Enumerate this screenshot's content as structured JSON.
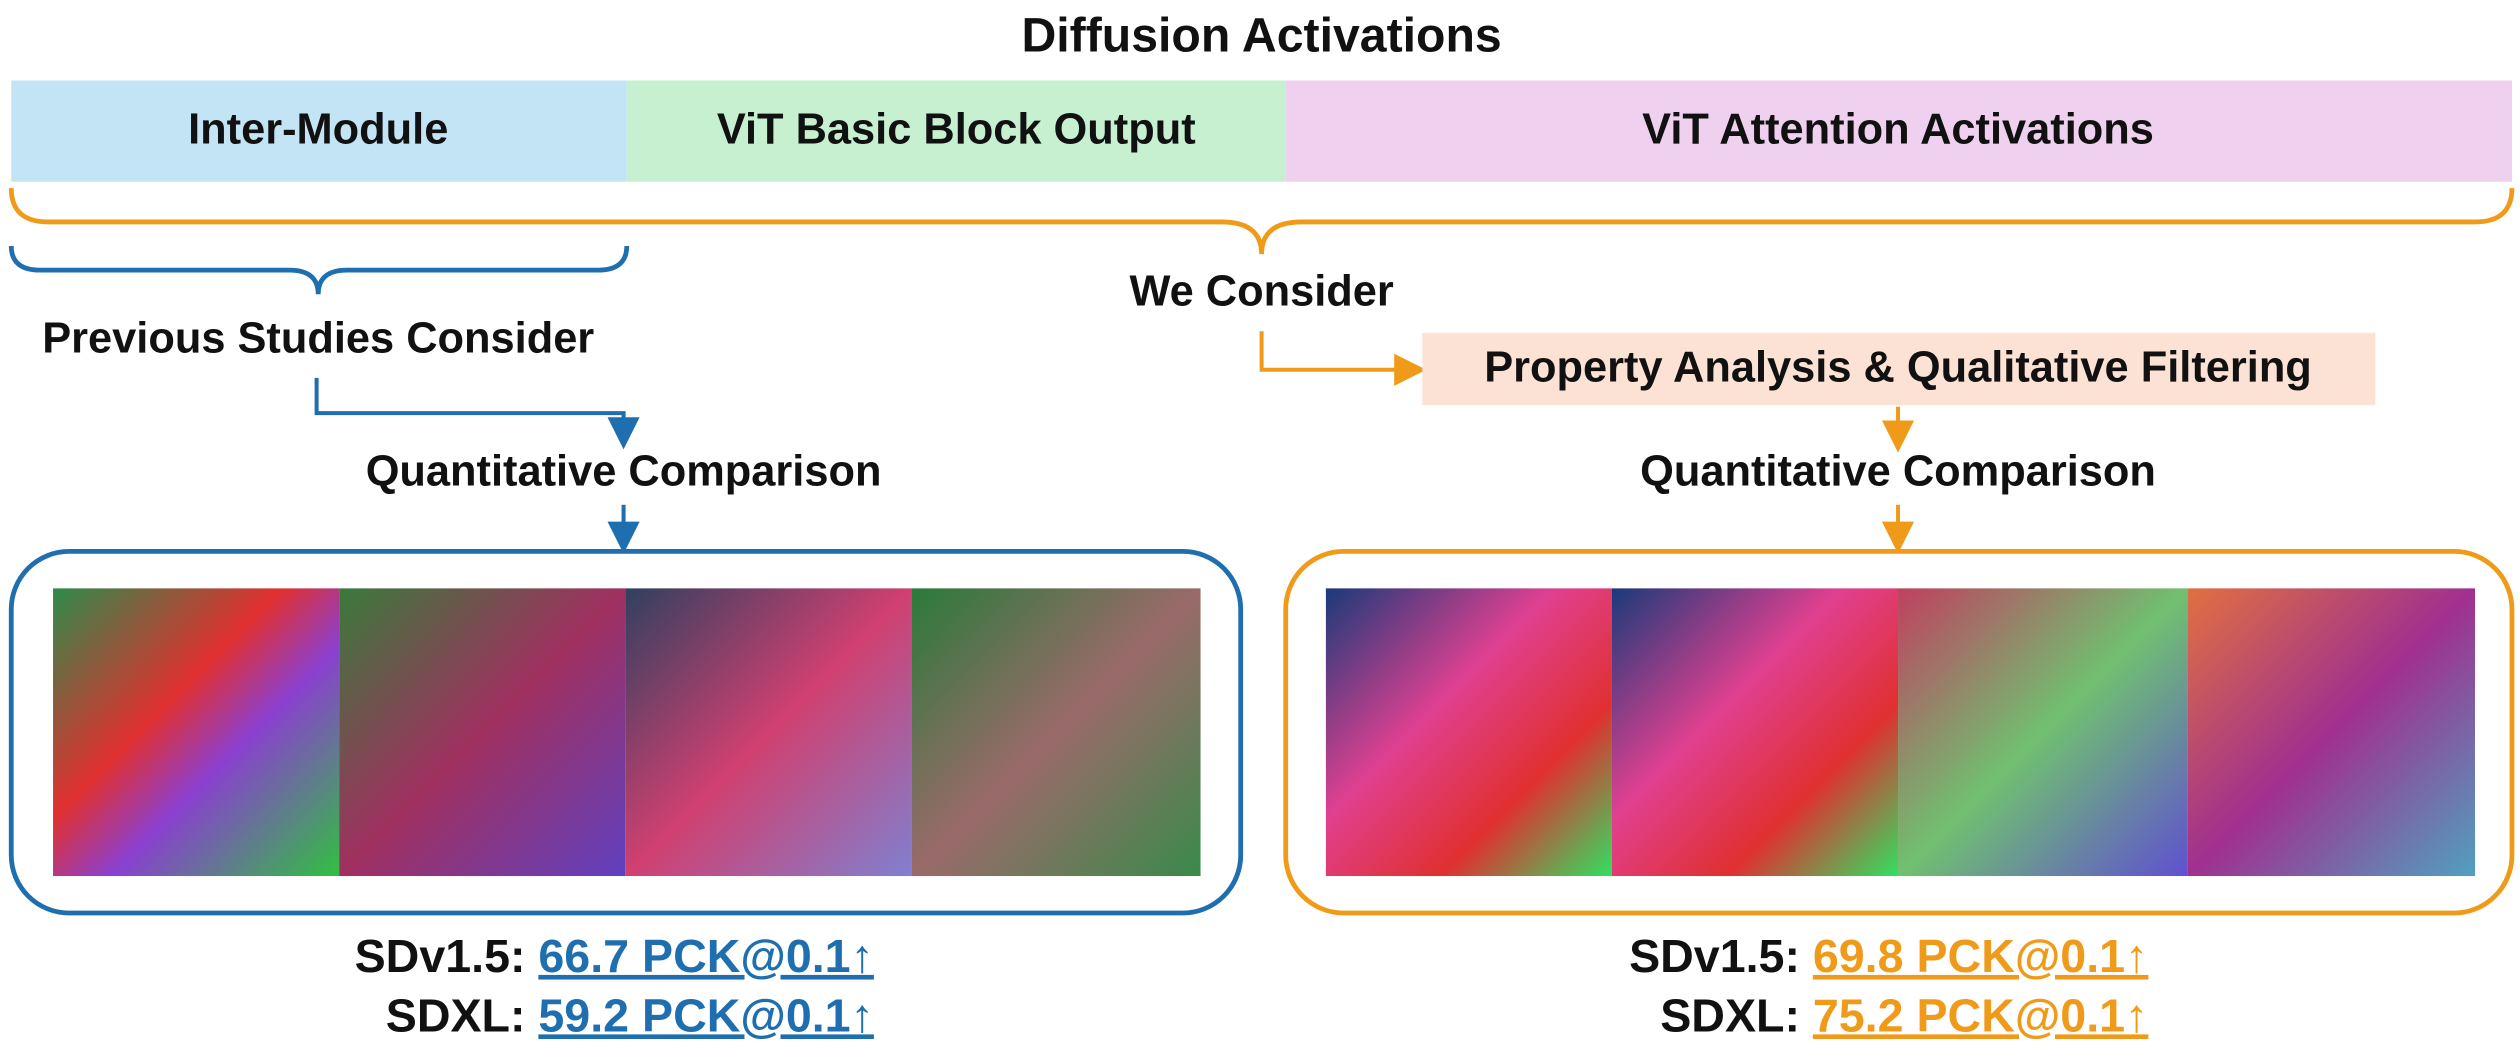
{
  "header": {
    "title": "Diffusion Activations",
    "segments": [
      "Inter-Module",
      "ViT Basic Block Output",
      "ViT Attention Activations"
    ]
  },
  "labels": {
    "we_consider": "We Consider",
    "previous": "Previous Studies Consider"
  },
  "left": {
    "step": "Quantitative Comparison",
    "results": [
      {
        "model": "SDv1.5:",
        "score": "66.7 PCK@0.1↑"
      },
      {
        "model": "SDXL:",
        "score": "59.2 PCK@0.1↑"
      }
    ]
  },
  "right": {
    "filter": "Property Analysis & Qualitative Filtering",
    "step": "Quantitative Comparison",
    "results": [
      {
        "model": "SDv1.5:",
        "score": "69.8 PCK@0.1↑"
      },
      {
        "model": "SDXL:",
        "score": "75.2 PCK@0.1↑"
      }
    ]
  }
}
